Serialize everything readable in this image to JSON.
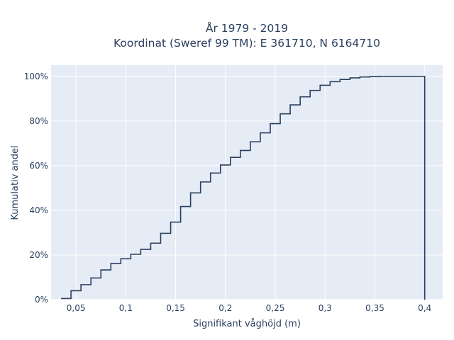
{
  "chart_data": {
    "type": "line",
    "line_shape": "step",
    "title": "År 1979 - 2019",
    "subtitle": "Koordinat (Sweref 99 TM): E 361710, N 6164710",
    "xlabel": "Signifikant våghöjd (m)",
    "ylabel": "Kumulativ andel",
    "xlim": [
      0.025,
      0.418
    ],
    "ylim": [
      0,
      1.05
    ],
    "x_ticks": [
      0.05,
      0.1,
      0.15,
      0.2,
      0.25,
      0.3,
      0.35,
      0.4
    ],
    "x_tick_labels": [
      "0,05",
      "0,1",
      "0,15",
      "0,2",
      "0,25",
      "0,3",
      "0,35",
      "0,4"
    ],
    "y_ticks": [
      0,
      0.2,
      0.4,
      0.6,
      0.8,
      1.0
    ],
    "y_tick_labels": [
      "0%",
      "20%",
      "40%",
      "60%",
      "80%",
      "100%"
    ],
    "grid": true,
    "background": "#e5ecf6",
    "line_color": "#2a3f5f",
    "series": [
      {
        "x": [
          0.04,
          0.05,
          0.06,
          0.07,
          0.08,
          0.09,
          0.1,
          0.11,
          0.12,
          0.13,
          0.14,
          0.15,
          0.16,
          0.17,
          0.18,
          0.19,
          0.2,
          0.21,
          0.22,
          0.23,
          0.24,
          0.25,
          0.26,
          0.27,
          0.28,
          0.29,
          0.3,
          0.31,
          0.32,
          0.33,
          0.34,
          0.35,
          0.36,
          0.37,
          0.38,
          0.39,
          0.4
        ],
        "y": [
          0.005,
          0.04,
          0.067,
          0.097,
          0.133,
          0.162,
          0.183,
          0.203,
          0.225,
          0.253,
          0.297,
          0.347,
          0.417,
          0.478,
          0.527,
          0.567,
          0.603,
          0.637,
          0.668,
          0.707,
          0.747,
          0.788,
          0.832,
          0.872,
          0.908,
          0.937,
          0.96,
          0.976,
          0.986,
          0.993,
          0.997,
          0.999,
          1.0,
          1.0,
          1.0,
          1.0,
          0
        ]
      }
    ]
  }
}
